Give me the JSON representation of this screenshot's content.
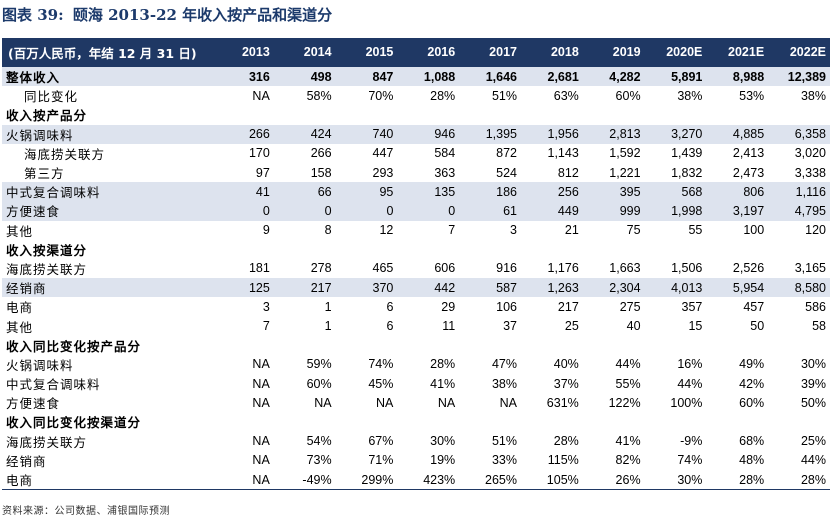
{
  "figure": {
    "number": "图表 39:",
    "title": "颐海 2013-22 年收入按产品和渠道分"
  },
  "table": {
    "header_label": "(百万人民币，年结 12 月 31 日)",
    "years": [
      "2013",
      "2014",
      "2015",
      "2016",
      "2017",
      "2018",
      "2019",
      "2020E",
      "2021E",
      "2022E"
    ],
    "rows": [
      {
        "label": "整体收入",
        "style": "total",
        "values": [
          "316",
          "498",
          "847",
          "1,088",
          "1,646",
          "2,681",
          "4,282",
          "5,891",
          "8,988",
          "12,389"
        ]
      },
      {
        "label": "同比变化",
        "style": "ind1",
        "values": [
          "NA",
          "58%",
          "70%",
          "28%",
          "51%",
          "63%",
          "60%",
          "38%",
          "53%",
          "38%"
        ]
      },
      {
        "label": "收入按产品分",
        "style": "section",
        "values": [
          "",
          "",
          "",
          "",
          "",
          "",
          "",
          "",
          "",
          ""
        ]
      },
      {
        "label": "火锅调味料",
        "style": "shade",
        "values": [
          "266",
          "424",
          "740",
          "946",
          "1,395",
          "1,956",
          "2,813",
          "3,270",
          "4,885",
          "6,358"
        ]
      },
      {
        "label": "海底捞关联方",
        "style": "ind2",
        "values": [
          "170",
          "266",
          "447",
          "584",
          "872",
          "1,143",
          "1,592",
          "1,439",
          "2,413",
          "3,020"
        ]
      },
      {
        "label": "第三方",
        "style": "ind2",
        "values": [
          "97",
          "158",
          "293",
          "363",
          "524",
          "812",
          "1,221",
          "1,832",
          "2,473",
          "3,338"
        ]
      },
      {
        "label": "中式复合调味料",
        "style": "shade",
        "values": [
          "41",
          "66",
          "95",
          "135",
          "186",
          "256",
          "395",
          "568",
          "806",
          "1,116"
        ]
      },
      {
        "label": "方便速食",
        "style": "shade",
        "values": [
          "0",
          "0",
          "0",
          "0",
          "61",
          "449",
          "999",
          "1,998",
          "3,197",
          "4,795"
        ]
      },
      {
        "label": "其他",
        "style": "plain",
        "values": [
          "9",
          "8",
          "12",
          "7",
          "3",
          "21",
          "75",
          "55",
          "100",
          "120"
        ]
      },
      {
        "label": "收入按渠道分",
        "style": "section",
        "values": [
          "",
          "",
          "",
          "",
          "",
          "",
          "",
          "",
          "",
          ""
        ]
      },
      {
        "label": "海底捞关联方",
        "style": "plain",
        "values": [
          "181",
          "278",
          "465",
          "606",
          "916",
          "1,176",
          "1,663",
          "1,506",
          "2,526",
          "3,165"
        ]
      },
      {
        "label": "经销商",
        "style": "shade",
        "values": [
          "125",
          "217",
          "370",
          "442",
          "587",
          "1,263",
          "2,304",
          "4,013",
          "5,954",
          "8,580"
        ]
      },
      {
        "label": "电商",
        "style": "plain",
        "values": [
          "3",
          "1",
          "6",
          "29",
          "106",
          "217",
          "275",
          "357",
          "457",
          "586"
        ]
      },
      {
        "label": "其他",
        "style": "plain",
        "values": [
          "7",
          "1",
          "6",
          "11",
          "37",
          "25",
          "40",
          "15",
          "50",
          "58"
        ]
      },
      {
        "label": "收入同比变化按产品分",
        "style": "section",
        "values": [
          "",
          "",
          "",
          "",
          "",
          "",
          "",
          "",
          "",
          ""
        ]
      },
      {
        "label": "火锅调味料",
        "style": "plain",
        "values": [
          "NA",
          "59%",
          "74%",
          "28%",
          "47%",
          "40%",
          "44%",
          "16%",
          "49%",
          "30%"
        ]
      },
      {
        "label": "中式复合调味料",
        "style": "plain",
        "values": [
          "NA",
          "60%",
          "45%",
          "41%",
          "38%",
          "37%",
          "55%",
          "44%",
          "42%",
          "39%"
        ]
      },
      {
        "label": "方便速食",
        "style": "plain",
        "values": [
          "NA",
          "NA",
          "NA",
          "NA",
          "NA",
          "631%",
          "122%",
          "100%",
          "60%",
          "50%"
        ]
      },
      {
        "label": "收入同比变化按渠道分",
        "style": "section",
        "values": [
          "",
          "",
          "",
          "",
          "",
          "",
          "",
          "",
          "",
          ""
        ]
      },
      {
        "label": "海底捞关联方",
        "style": "plain",
        "values": [
          "NA",
          "54%",
          "67%",
          "30%",
          "51%",
          "28%",
          "41%",
          "-9%",
          "68%",
          "25%"
        ]
      },
      {
        "label": "经销商",
        "style": "plain",
        "values": [
          "NA",
          "73%",
          "71%",
          "19%",
          "33%",
          "115%",
          "82%",
          "74%",
          "48%",
          "44%"
        ]
      },
      {
        "label": "电商",
        "style": "last",
        "values": [
          "NA",
          "-49%",
          "299%",
          "423%",
          "265%",
          "105%",
          "26%",
          "30%",
          "28%",
          "28%"
        ]
      }
    ]
  },
  "source": "资料来源：公司数据、浦银国际预测"
}
